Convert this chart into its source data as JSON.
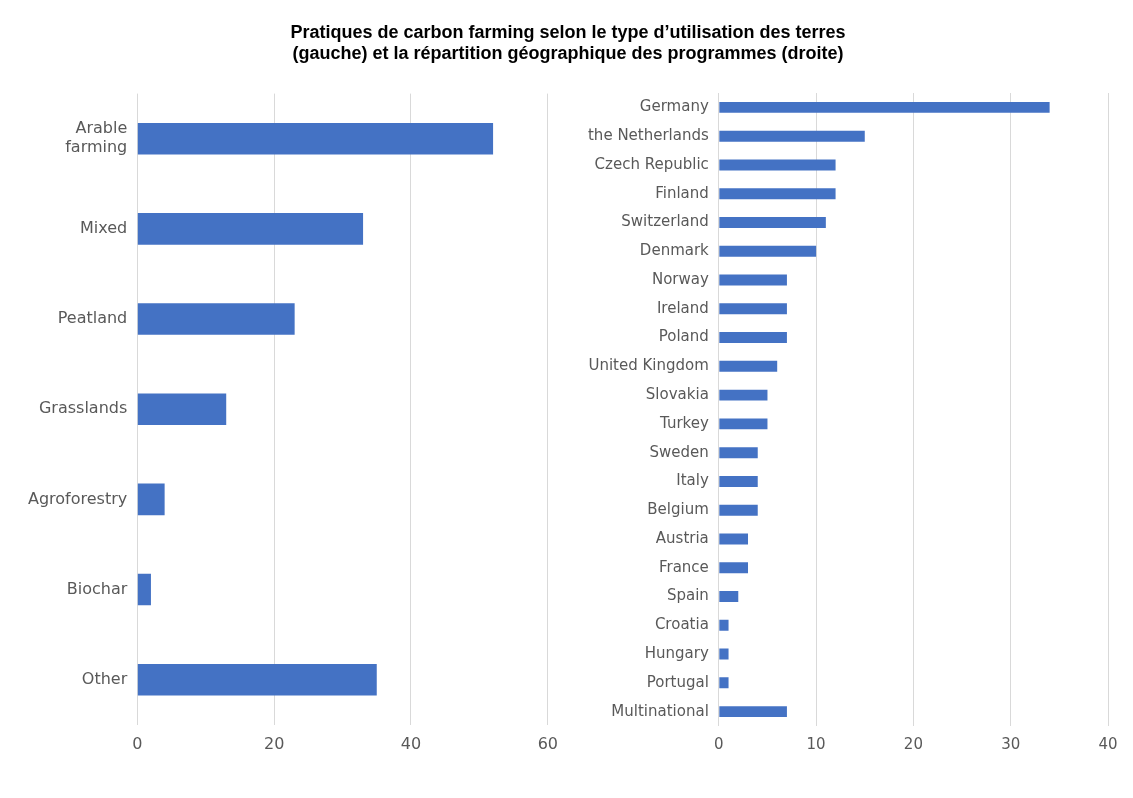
{
  "chart_data": [
    {
      "type": "bar",
      "orientation": "horizontal",
      "title": "Pratiques de carbon farming selon le type d’utilisation des terres (gauche) et la répartition géographique des programmes (droite)",
      "categories": [
        "Arable farming",
        "Mixed",
        "Peatland",
        "Grasslands",
        "Agroforestry",
        "Biochar",
        "Other"
      ],
      "values": [
        52,
        33,
        23,
        13,
        4,
        2,
        35
      ],
      "color": "#4472c4",
      "xlim": [
        0,
        60
      ],
      "xticks": [
        0,
        20,
        40,
        60
      ],
      "grid": "x"
    },
    {
      "type": "bar",
      "orientation": "horizontal",
      "categories": [
        "Germany",
        "the Netherlands",
        "Czech Republic",
        "Finland",
        "Switzerland",
        "Denmark",
        "Norway",
        "Ireland",
        "Poland",
        "United Kingdom",
        "Slovakia",
        "Turkey",
        "Sweden",
        "Italy",
        "Belgium",
        "Austria",
        "France",
        "Spain",
        "Croatia",
        "Hungary",
        "Portugal",
        "Multinational"
      ],
      "values": [
        34,
        15,
        12,
        12,
        11,
        10,
        7,
        7,
        7,
        6,
        5,
        5,
        4,
        4,
        4,
        3,
        3,
        2,
        1,
        1,
        1,
        7
      ],
      "color": "#4472c4",
      "xlim": [
        0,
        40
      ],
      "xticks": [
        0,
        10,
        20,
        30,
        40
      ],
      "grid": "x"
    }
  ]
}
